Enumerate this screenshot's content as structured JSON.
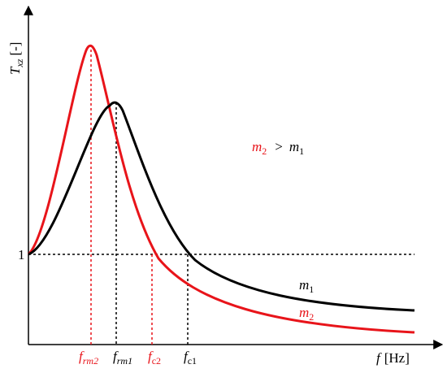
{
  "y_axis": {
    "symbol": "T",
    "subscript": "xz",
    "unit": "[-]",
    "level": "1"
  },
  "x_axis": {
    "symbol": "f",
    "unit": "[Hz]"
  },
  "markers": [
    {
      "symbol": "f",
      "subscript": "rm2"
    },
    {
      "symbol": "f",
      "subscript": "rm1"
    },
    {
      "symbol": "f",
      "subscript": "c2"
    },
    {
      "symbol": "f",
      "subscript": "c1"
    }
  ],
  "relation": {
    "left": {
      "symbol": "m",
      "subscript": "2"
    },
    "operator": ">",
    "right": {
      "symbol": "m",
      "subscript": "1"
    }
  },
  "curve_labels": [
    {
      "symbol": "m",
      "subscript": "1"
    },
    {
      "symbol": "m",
      "subscript": "2"
    }
  ]
}
